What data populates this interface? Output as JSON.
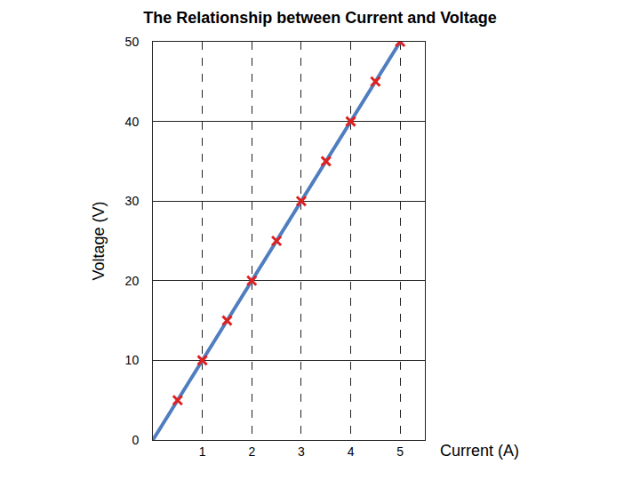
{
  "chart_data": {
    "type": "scatter",
    "title": "The Relationship between Current and Voltage",
    "xlabel": "Current (A)",
    "ylabel": "Voltage (V)",
    "series": [
      {
        "type": "scatter",
        "color": "#e02020",
        "marker": "x",
        "x": [
          0.5,
          1,
          1.5,
          2,
          2.5,
          3,
          3.5,
          4,
          4.5,
          5
        ],
        "values": [
          5,
          10,
          15,
          20,
          25,
          30,
          35,
          40,
          45,
          50
        ]
      },
      {
        "type": "line",
        "color": "#4f7ec0",
        "line_style": "solid",
        "x": [
          0,
          5
        ],
        "values": [
          0,
          50
        ]
      }
    ],
    "xlim": [
      0,
      5.5
    ],
    "ylim": [
      0,
      50
    ],
    "xticks": [
      1,
      2,
      3,
      4,
      5
    ],
    "yticks": [
      0,
      10,
      20,
      30,
      40,
      50
    ],
    "grid": true
  }
}
